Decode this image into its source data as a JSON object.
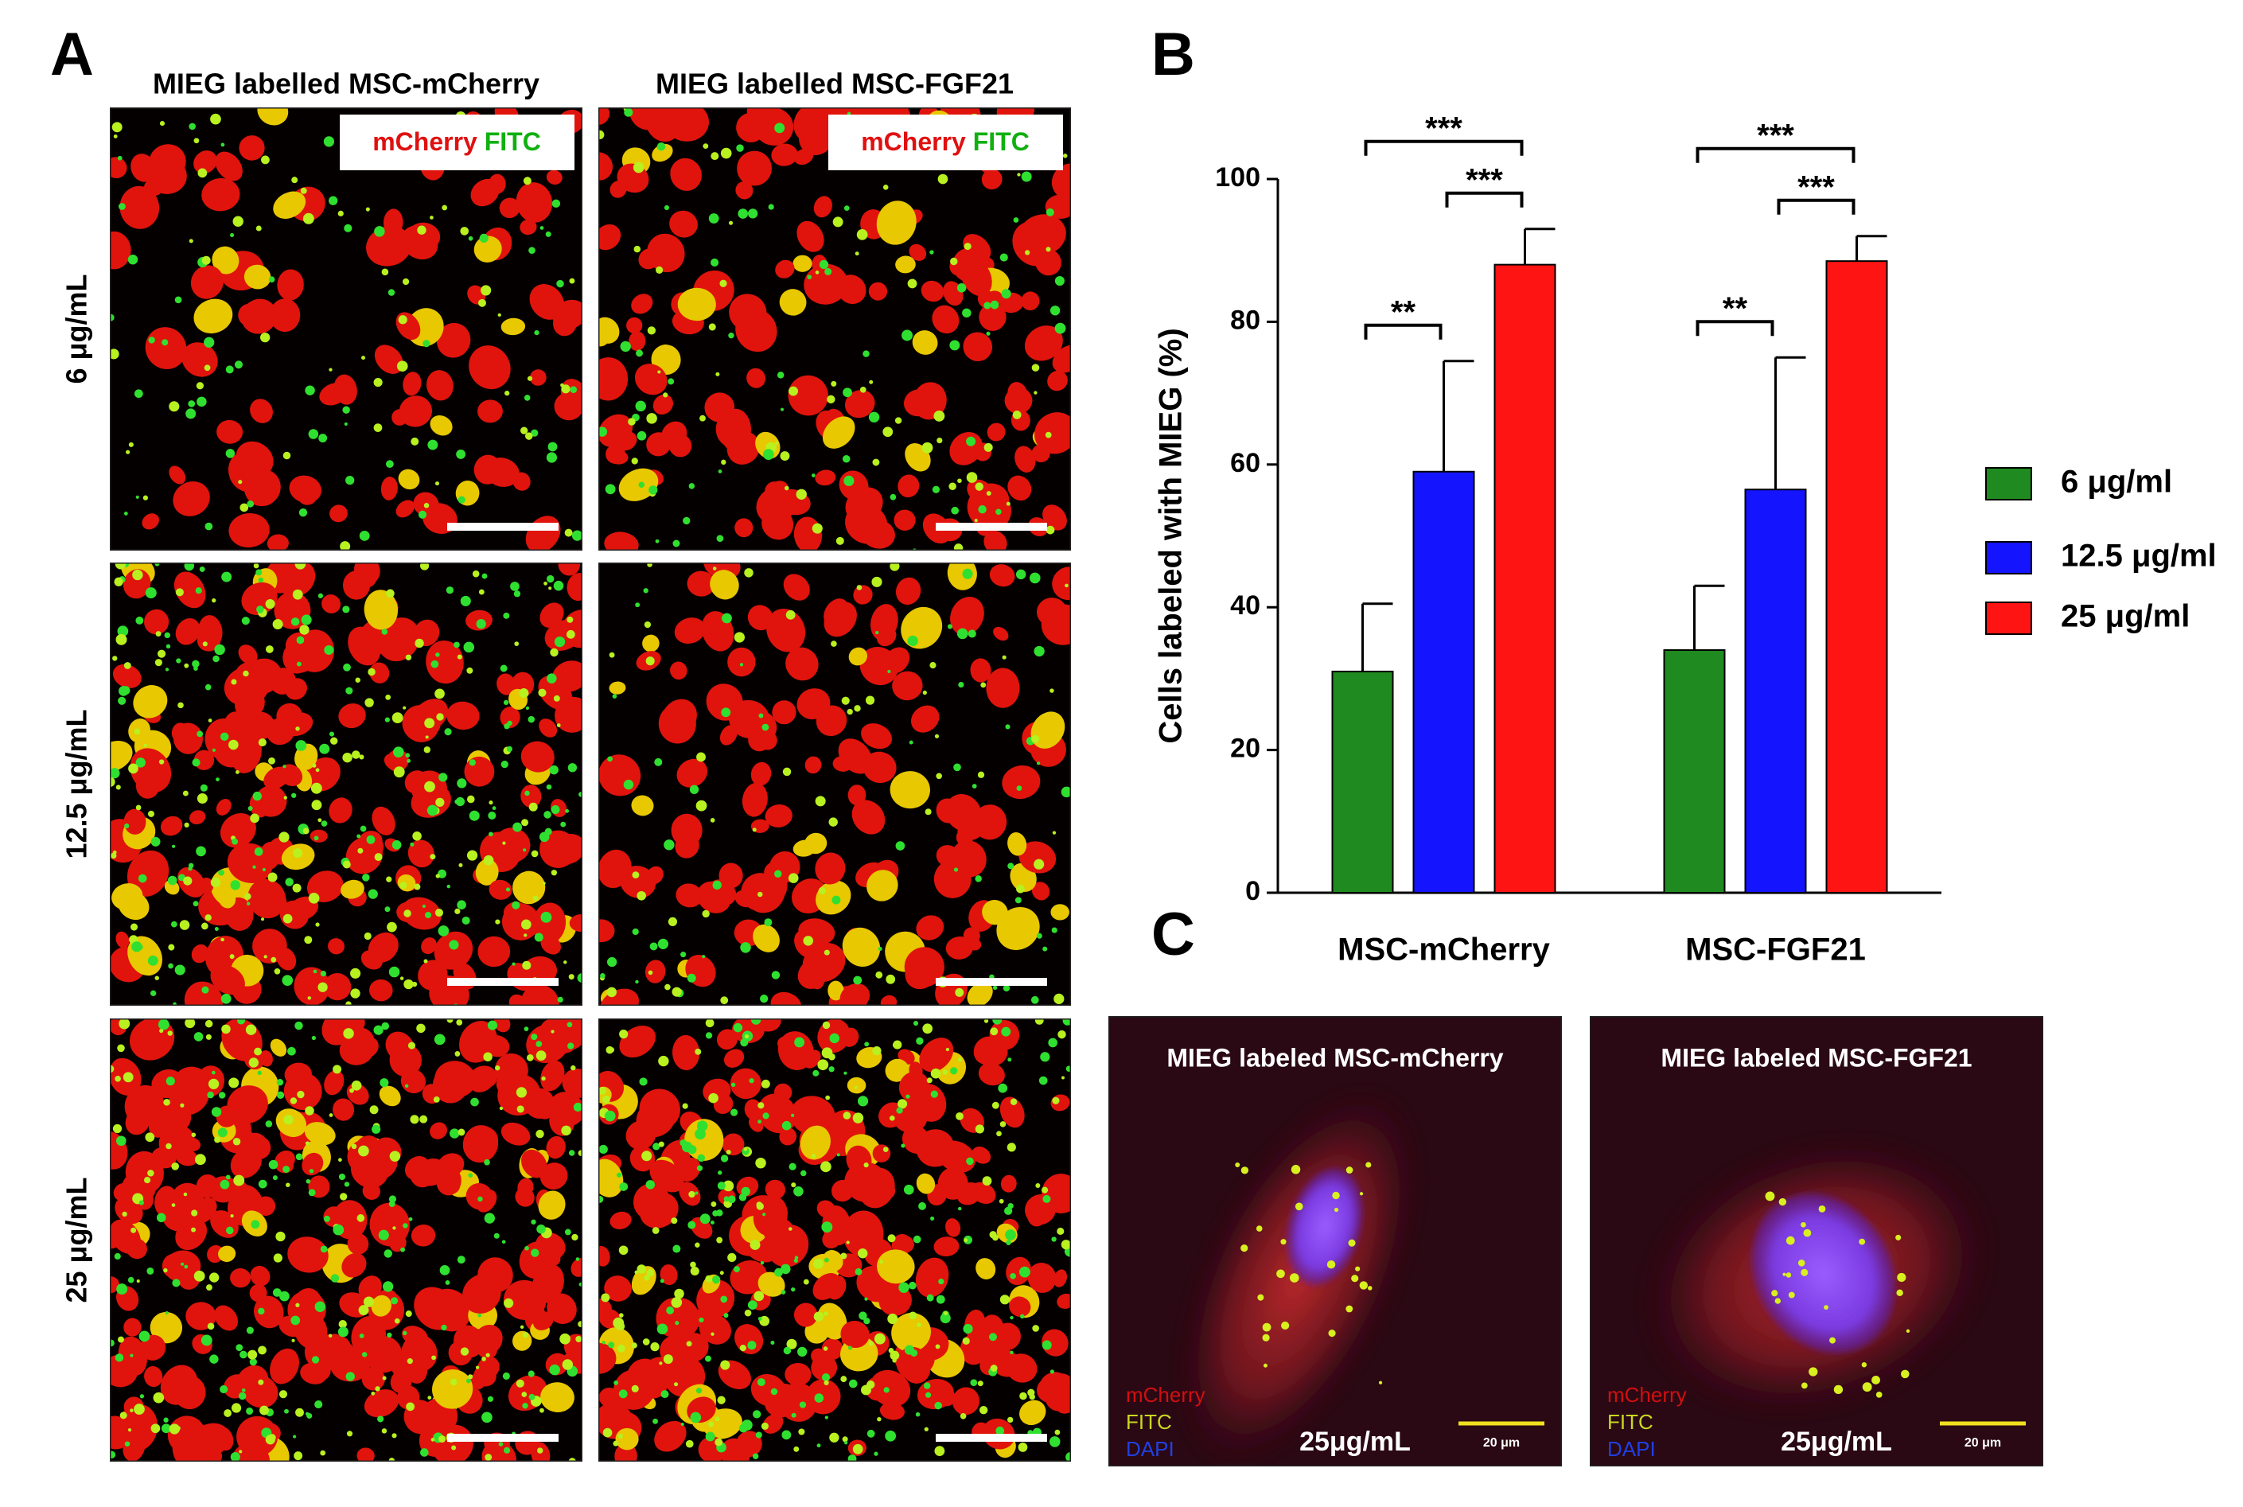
{
  "panel_a": {
    "label": "A",
    "columns": [
      {
        "title": "MIEG labelled MSC-mCherry",
        "legend": [
          "mCherry",
          "FITC"
        ]
      },
      {
        "title": "MIEG labelled MSC-FGF21",
        "legend": [
          "mCherry",
          "FITC"
        ]
      }
    ],
    "row_labels": [
      "6 μg/mL",
      "12.5 μg/mL",
      "25 μg/mL"
    ]
  },
  "chart_data": {
    "panel_label": "B",
    "type": "bar",
    "ylabel": "Cells labeled with MIEG (%)",
    "categories": [
      "MSC-mCherry",
      "MSC-FGF21"
    ],
    "series": [
      {
        "name": "6 μg/ml",
        "color": "#1f8a1f",
        "values": [
          31,
          34
        ],
        "errors": [
          9.5,
          9
        ]
      },
      {
        "name": "12.5 μg/ml",
        "color": "#1414ff",
        "values": [
          59,
          56.5
        ],
        "errors": [
          15.5,
          18.5
        ]
      },
      {
        "name": "25 μg/ml",
        "color": "#ff1414",
        "values": [
          88,
          88.5
        ],
        "errors": [
          5,
          3.5
        ]
      }
    ],
    "significance": [
      [
        "**",
        "***",
        "***"
      ],
      [
        "**",
        "***",
        "***"
      ]
    ],
    "ylim": [
      0,
      100
    ],
    "yticks": [
      0,
      20,
      40,
      60,
      80,
      100
    ]
  },
  "panel_c": {
    "label": "C",
    "images": [
      {
        "title": "MIEG labeled MSC-mCherry",
        "channels": [
          "mCherry",
          "FITC",
          "DAPI"
        ],
        "dose": "25μg/mL",
        "scale_bar": "20 μm"
      },
      {
        "title": "MIEG labeled MSC-FGF21",
        "channels": [
          "mCherry",
          "FITC",
          "DAPI"
        ],
        "dose": "25μg/mL",
        "scale_bar": "20 μm"
      }
    ]
  }
}
